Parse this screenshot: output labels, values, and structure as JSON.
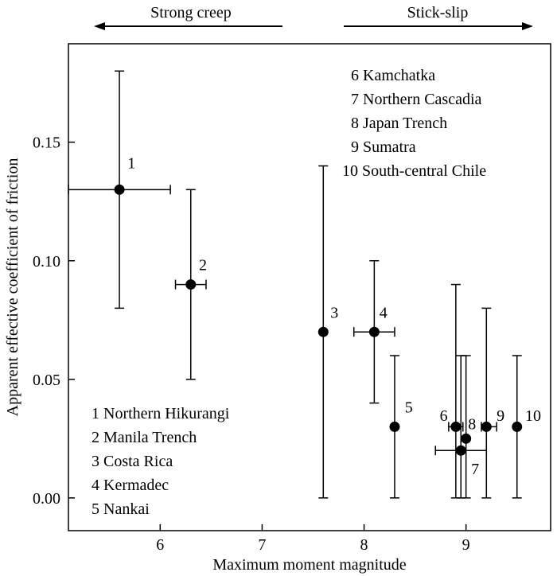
{
  "chart_data": {
    "type": "scatter",
    "xlabel": "Maximum moment magnitude",
    "ylabel": "Apparent effective coefficient of friction",
    "xlim": [
      5.1,
      9.83
    ],
    "ylim": [
      -0.0138,
      0.1915
    ],
    "xticks": [
      {
        "value": 6,
        "label": "6"
      },
      {
        "value": 7,
        "label": "7"
      },
      {
        "value": 8,
        "label": "8"
      },
      {
        "value": 9,
        "label": "9"
      }
    ],
    "yticks": [
      {
        "value": 0.0,
        "label": "0.00"
      },
      {
        "value": 0.05,
        "label": "0.05"
      },
      {
        "value": 0.1,
        "label": "0.10"
      },
      {
        "value": 0.15,
        "label": "0.15"
      }
    ],
    "regimes": {
      "left": "Strong creep",
      "right": "Stick-slip"
    },
    "points": [
      {
        "id": "1",
        "x": 5.6,
        "y": 0.13,
        "xlo": 5.1,
        "xhi": 6.1,
        "ylo": 0.08,
        "yhi": 0.18,
        "lx": 0.08,
        "ly": 0.009,
        "anchor": "start"
      },
      {
        "id": "2",
        "x": 6.3,
        "y": 0.09,
        "xlo": 6.15,
        "xhi": 6.45,
        "ylo": 0.05,
        "yhi": 0.13,
        "lx": 0.08,
        "ly": 0.006,
        "anchor": "start"
      },
      {
        "id": "3",
        "x": 7.6,
        "y": 0.07,
        "xlo": null,
        "xhi": null,
        "ylo": 0.0,
        "yhi": 0.14,
        "lx": 0.07,
        "ly": 0.006,
        "anchor": "start"
      },
      {
        "id": "4",
        "x": 8.1,
        "y": 0.07,
        "xlo": 7.9,
        "xhi": 8.3,
        "ylo": 0.04,
        "yhi": 0.1,
        "lx": 0.05,
        "ly": 0.006,
        "anchor": "start"
      },
      {
        "id": "5",
        "x": 8.3,
        "y": 0.03,
        "xlo": null,
        "xhi": null,
        "ylo": 0.0,
        "yhi": 0.06,
        "lx": 0.1,
        "ly": 0.006,
        "anchor": "start"
      },
      {
        "id": "6",
        "x": 8.9,
        "y": 0.03,
        "xlo": 8.83,
        "xhi": 8.97,
        "ylo": 0.0,
        "yhi": 0.09,
        "lx": -0.08,
        "ly": 0.0025,
        "anchor": "end"
      },
      {
        "id": "7",
        "x": 8.95,
        "y": 0.02,
        "xlo": 8.7,
        "xhi": 9.2,
        "ylo": 0.0,
        "yhi": 0.06,
        "lx": 0.1,
        "ly": -0.01,
        "anchor": "start"
      },
      {
        "id": "8",
        "x": 9.0,
        "y": 0.025,
        "xlo": null,
        "xhi": null,
        "ylo": 0.0,
        "yhi": 0.06,
        "lx": 0.02,
        "ly": 0.004,
        "anchor": "start"
      },
      {
        "id": "9",
        "x": 9.2,
        "y": 0.03,
        "xlo": 9.15,
        "xhi": 9.3,
        "ylo": 0.0,
        "yhi": 0.08,
        "lx": 0.1,
        "ly": 0.0025,
        "anchor": "start"
      },
      {
        "id": "10",
        "x": 9.5,
        "y": 0.03,
        "xlo": null,
        "xhi": null,
        "ylo": 0.0,
        "yhi": 0.06,
        "lx": 0.08,
        "ly": 0.0025,
        "anchor": "start"
      }
    ],
    "legend_left": [
      "1 Northern Hikurangi",
      "2 Manila Trench",
      "3 Costa Rica",
      "4 Kermadec",
      "5 Nankai"
    ],
    "legend_right": [
      "6 Kamchatka",
      "7 Northern Cascadia",
      "8 Japan Trench",
      "9 Sumatra",
      "10 South-central Chile"
    ]
  }
}
